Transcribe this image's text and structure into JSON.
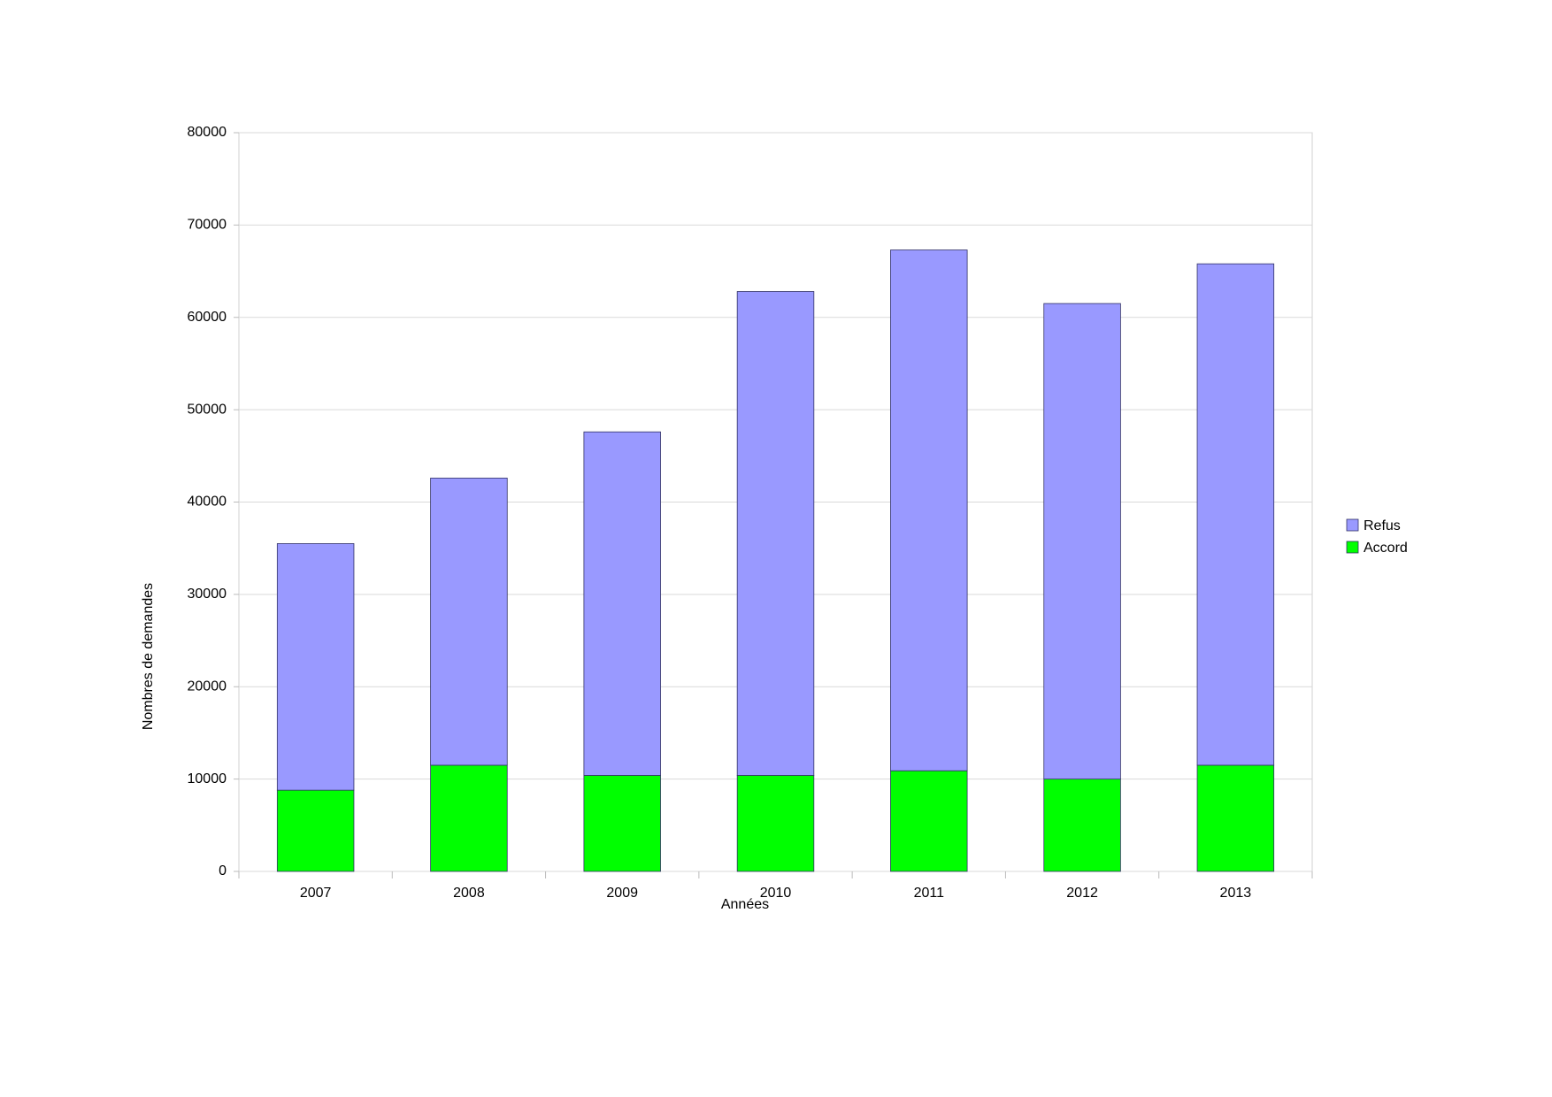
{
  "chart_data": {
    "type": "stacked_bar",
    "categories": [
      "2007",
      "2008",
      "2009",
      "2010",
      "2011",
      "2012",
      "2013"
    ],
    "series": [
      {
        "name": "Accord",
        "color": "#00ff00",
        "values": [
          8800,
          11500,
          10400,
          10400,
          10900,
          10000,
          11500
        ]
      },
      {
        "name": "Refus",
        "color": "#9999ff",
        "values": [
          26700,
          31100,
          37200,
          52400,
          56400,
          51500,
          54300
        ]
      }
    ],
    "x_label": "Années",
    "y_label": "Nombres de demandes",
    "ylim": [
      0,
      80000
    ],
    "yticks": [
      0,
      10000,
      20000,
      30000,
      40000,
      50000,
      60000,
      70000,
      80000
    ],
    "grid": true,
    "legend": "right"
  }
}
